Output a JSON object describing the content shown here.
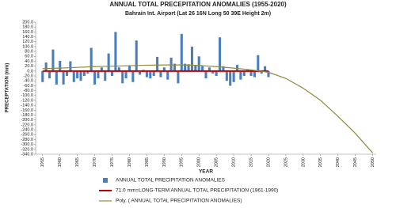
{
  "chart_data": {
    "type": "bar",
    "title": "ANNUAL TOTAL PRECEPITATION ANOMALIES (1955-2020)",
    "subtitle": "Bahrain Int. Airport (Lat 26 16N Long 50 39E  Height 2m)",
    "xlabel": "YEAR",
    "ylabel": "PRECEPTATION (mm)",
    "xlim": [
      1953,
      2051
    ],
    "ylim": [
      -340,
      200
    ],
    "grid": false,
    "xticks": [
      1955,
      1960,
      1965,
      1970,
      1975,
      1980,
      1985,
      1990,
      1995,
      2000,
      2005,
      2010,
      2015,
      2020,
      2025,
      2030,
      2035,
      2040,
      2045,
      2050
    ],
    "yticks": [
      {
        "value": 200,
        "label": "200.0"
      },
      {
        "value": 180,
        "label": "180.0"
      },
      {
        "value": 160,
        "label": "160.0"
      },
      {
        "value": 140,
        "label": "140.0"
      },
      {
        "value": 120,
        "label": "120.0"
      },
      {
        "value": 100,
        "label": "100.0"
      },
      {
        "value": 80,
        "label": "80.0"
      },
      {
        "value": 60,
        "label": "60.0"
      },
      {
        "value": 40,
        "label": "40.0"
      },
      {
        "value": 20,
        "label": "20.0"
      },
      {
        "value": 0,
        "label": "0.0"
      },
      {
        "value": -20,
        "label": "-20.0"
      },
      {
        "value": -40,
        "label": "-40.0"
      },
      {
        "value": -60,
        "label": "-60.0"
      },
      {
        "value": -80,
        "label": "-80.0"
      },
      {
        "value": -100,
        "label": "-100.0"
      },
      {
        "value": -120,
        "label": "-120.0"
      },
      {
        "value": -140,
        "label": "-140.0"
      },
      {
        "value": -160,
        "label": "-160.0"
      },
      {
        "value": -180,
        "label": "-180.0"
      },
      {
        "value": -200,
        "label": "-200.0"
      },
      {
        "value": -220,
        "label": "-220.0"
      },
      {
        "value": -240,
        "label": "-240.0"
      },
      {
        "value": -260,
        "label": "-260.0"
      },
      {
        "value": -280,
        "label": "-280.0"
      },
      {
        "value": -300,
        "label": "-300.0"
      },
      {
        "value": -320,
        "label": "-320.0"
      },
      {
        "value": -340,
        "label": "-340.0"
      }
    ],
    "series": [
      {
        "name": "ANNUAL TOTAL PRECIPITATION ANOMALIES",
        "type": "bar",
        "color": "#4a7ebb",
        "x": [
          1955,
          1956,
          1957,
          1958,
          1959,
          1960,
          1961,
          1962,
          1963,
          1964,
          1965,
          1966,
          1967,
          1968,
          1969,
          1970,
          1971,
          1972,
          1973,
          1974,
          1975,
          1976,
          1977,
          1978,
          1979,
          1980,
          1981,
          1982,
          1983,
          1984,
          1985,
          1986,
          1987,
          1988,
          1989,
          1990,
          1991,
          1992,
          1993,
          1994,
          1995,
          1996,
          1997,
          1998,
          1999,
          2000,
          2001,
          2002,
          2003,
          2004,
          2005,
          2006,
          2007,
          2008,
          2009,
          2010,
          2011,
          2012,
          2013,
          2014,
          2015,
          2016,
          2017,
          2018,
          2019,
          2020
        ],
        "values": [
          -45,
          35,
          -30,
          88,
          -55,
          42,
          -55,
          -20,
          40,
          -45,
          -30,
          -40,
          -20,
          -10,
          95,
          -55,
          -30,
          15,
          -40,
          72,
          -20,
          160,
          15,
          -50,
          -30,
          22,
          -45,
          125,
          -15,
          5,
          -25,
          -30,
          -20,
          58,
          -25,
          15,
          -35,
          55,
          30,
          -50,
          152,
          30,
          28,
          100,
          25,
          60,
          20,
          -30,
          15,
          -10,
          -20,
          138,
          20,
          -40,
          -60,
          -45,
          25,
          -35,
          -20,
          5,
          -20,
          -25,
          65,
          -10,
          20,
          -25
        ]
      },
      {
        "name": "71.0 mm=LONG-TERM ANNUAL TOTAL PRECIPITATION (1961-1990)",
        "type": "line",
        "color": "#c00000",
        "x": [
          1955,
          2020
        ],
        "values": [
          0,
          0
        ]
      },
      {
        "name": "Poly. ( ANNUAL TOTAL PRECIPITATION ANOMALIES)",
        "type": "line",
        "color": "#8f8a3e",
        "x": [
          1955,
          1960,
          1965,
          1970,
          1975,
          1980,
          1985,
          1990,
          1995,
          2000,
          2005,
          2010,
          2015,
          2020,
          2025,
          2030,
          2035,
          2040,
          2045,
          2050
        ],
        "values": [
          10,
          12,
          15,
          18,
          20,
          22,
          24,
          25,
          25,
          23,
          18,
          12,
          5,
          -5,
          -30,
          -70,
          -120,
          -185,
          -255,
          -335
        ]
      }
    ]
  }
}
